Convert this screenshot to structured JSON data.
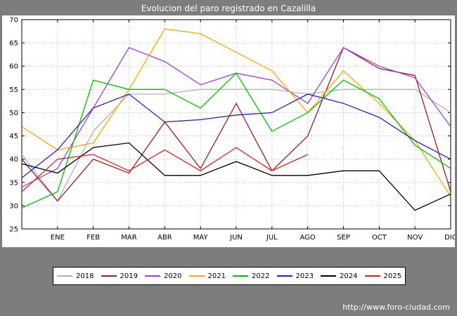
{
  "header": {
    "title": "Evolucion del paro registrado en Cazalilla"
  },
  "footer": {
    "url": "http://www.foro-ciudad.com"
  },
  "chart_data": {
    "type": "line",
    "title": "Evolucion del paro registrado en Cazalilla",
    "xlabel": "",
    "ylabel": "",
    "ylim": [
      25,
      70
    ],
    "ytick_step": 5,
    "grid": true,
    "legend_position": "bottom",
    "x_note": "First value of each series sits on the plot left edge; the remaining 12 values sit on the ENE..DIC month ticks",
    "x_labels": [
      "ENE",
      "FEB",
      "MAR",
      "ABR",
      "MAY",
      "JUN",
      "JUL",
      "AGO",
      "SEP",
      "OCT",
      "NOV",
      "DIC"
    ],
    "series": [
      {
        "name": "2018",
        "color": "#b2b2b2",
        "values": [
          41,
          31,
          46,
          54,
          54,
          55,
          55,
          55,
          54,
          55,
          55,
          55,
          50
        ]
      },
      {
        "name": "2019",
        "color": "#9b1c1c",
        "values": [
          40,
          31,
          40,
          37,
          48,
          38,
          52,
          37.5,
          45,
          64,
          59.5,
          58,
          33
        ]
      },
      {
        "name": "2020",
        "color": "#a23be0",
        "values": [
          34,
          38,
          51,
          64,
          61,
          56,
          58.5,
          57,
          52,
          64,
          60,
          57.5,
          47
        ]
      },
      {
        "name": "2021",
        "color": "#ffa500",
        "values": [
          47,
          42,
          43.5,
          55,
          68,
          67,
          63,
          59,
          50,
          59,
          52,
          44,
          32
        ]
      },
      {
        "name": "2022",
        "color": "#00c000",
        "values": [
          29.5,
          33,
          57,
          55,
          55,
          51,
          58.5,
          46,
          50,
          57,
          53,
          43,
          38
        ]
      },
      {
        "name": "2023",
        "color": "#2222cc",
        "values": [
          36,
          42,
          51,
          54,
          48,
          48.5,
          49.5,
          50,
          54,
          52,
          49,
          44,
          40
        ]
      },
      {
        "name": "2024",
        "color": "#000000",
        "values": [
          39,
          37,
          42.5,
          43.5,
          36.5,
          36.5,
          39.5,
          36.5,
          36.5,
          37.5,
          37.5,
          29,
          32.5
        ]
      },
      {
        "name": "2025",
        "color": "#e02020",
        "values": [
          33,
          40,
          41,
          37.5,
          42,
          37.5,
          42.5,
          37.5,
          41,
          null,
          null,
          null,
          null
        ]
      }
    ]
  }
}
